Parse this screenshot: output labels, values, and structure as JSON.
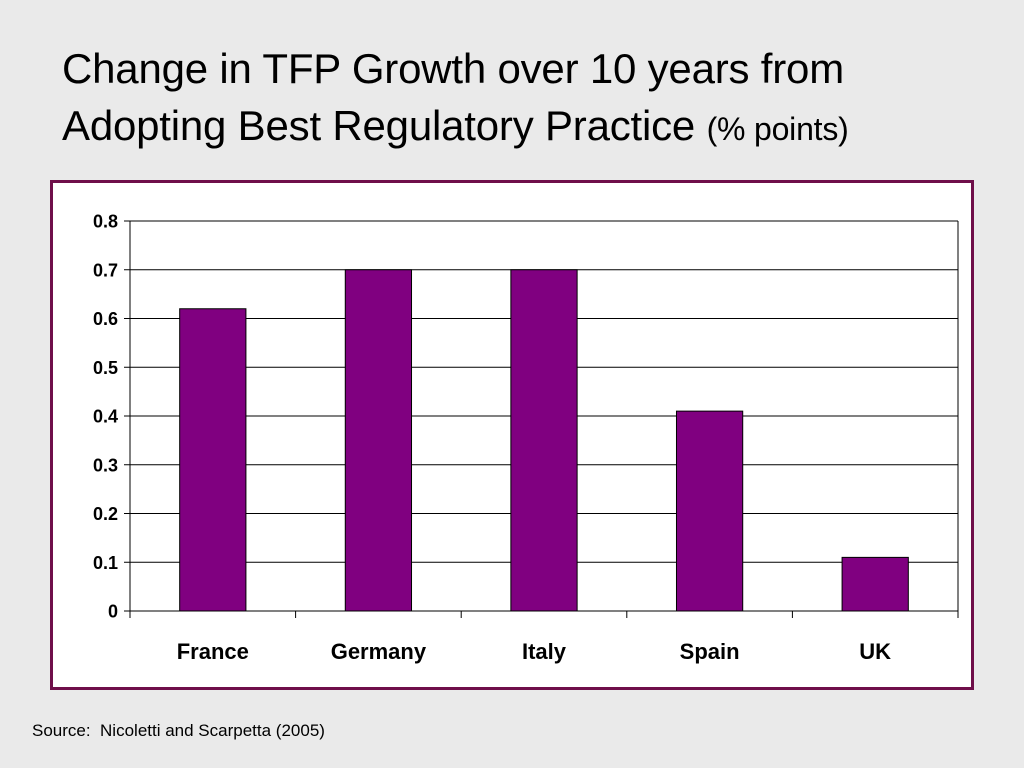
{
  "slide": {
    "title_line1": "Change in TFP Growth over 10 years from",
    "title_line2": "Adopting Best Regulatory Practice",
    "title_unit": "(% points)",
    "source": "Source:  Nicoletti and Scarpetta (2005)"
  },
  "chart_data": {
    "type": "bar",
    "title": "",
    "xlabel": "",
    "ylabel": "",
    "categories": [
      "France",
      "Germany",
      "Italy",
      "Spain",
      "UK"
    ],
    "values": [
      0.62,
      0.7,
      0.7,
      0.41,
      0.11
    ],
    "ylim": [
      0,
      0.8
    ],
    "yticks": [
      0,
      0.1,
      0.2,
      0.3,
      0.4,
      0.5,
      0.6,
      0.7,
      0.8
    ],
    "ytick_labels": [
      "0",
      "0.1",
      "0.2",
      "0.3",
      "0.4",
      "0.5",
      "0.6",
      "0.7",
      "0.8"
    ],
    "grid": true,
    "legend": "none",
    "bar_color": "#800080",
    "frame_color": "#6f0f4a"
  }
}
